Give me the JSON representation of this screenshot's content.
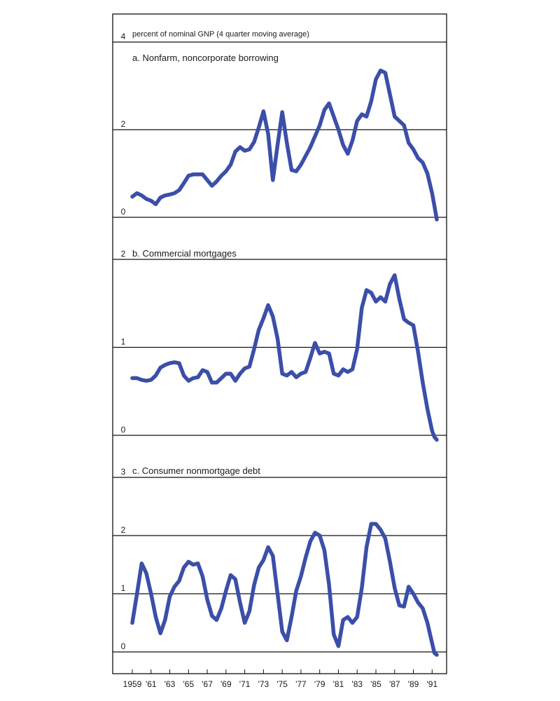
{
  "chart_data": [
    {
      "type": "line",
      "panel": "a",
      "title": "a. Nonfarm, noncorporate borrowing",
      "unit_label": "percent of nominal GNP (4 quarter moving average)",
      "ylim": [
        0,
        4
      ],
      "yticks": [
        0,
        2,
        4
      ],
      "grid": true,
      "x": [
        1959.0,
        1959.5,
        1960.0,
        1960.5,
        1961.0,
        1961.5,
        1962.0,
        1962.5,
        1963.0,
        1963.5,
        1964.0,
        1964.5,
        1965.0,
        1965.5,
        1966.0,
        1966.5,
        1967.0,
        1967.5,
        1968.0,
        1968.5,
        1969.0,
        1969.5,
        1970.0,
        1970.5,
        1971.0,
        1971.5,
        1972.0,
        1972.5,
        1973.0,
        1973.5,
        1974.0,
        1974.5,
        1975.0,
        1975.5,
        1976.0,
        1976.5,
        1977.0,
        1977.5,
        1978.0,
        1978.5,
        1979.0,
        1979.5,
        1980.0,
        1980.5,
        1981.0,
        1981.5,
        1982.0,
        1982.5,
        1983.0,
        1983.5,
        1984.0,
        1984.5,
        1985.0,
        1985.5,
        1986.0,
        1986.5,
        1987.0,
        1987.5,
        1988.0,
        1988.5,
        1989.0,
        1989.5,
        1990.0,
        1990.5,
        1991.0,
        1991.25,
        1991.5
      ],
      "y": [
        0.47,
        0.55,
        0.5,
        0.42,
        0.38,
        0.3,
        0.45,
        0.5,
        0.52,
        0.55,
        0.62,
        0.78,
        0.95,
        0.98,
        0.98,
        0.98,
        0.85,
        0.72,
        0.82,
        0.95,
        1.05,
        1.2,
        1.5,
        1.6,
        1.52,
        1.55,
        1.72,
        2.05,
        2.42,
        1.9,
        0.85,
        1.65,
        2.4,
        1.7,
        1.08,
        1.05,
        1.2,
        1.4,
        1.6,
        1.85,
        2.1,
        2.45,
        2.6,
        2.3,
        2.0,
        1.65,
        1.45,
        1.75,
        2.2,
        2.35,
        2.3,
        2.65,
        3.15,
        3.35,
        3.3,
        2.8,
        2.3,
        2.2,
        2.1,
        1.7,
        1.55,
        1.35,
        1.25,
        1.0,
        0.55,
        0.25,
        -0.05
      ],
      "series_color": "#3b4fa8"
    },
    {
      "type": "line",
      "panel": "b",
      "title": "b. Commercial mortgages",
      "ylim": [
        0,
        2
      ],
      "yticks": [
        0,
        1,
        2
      ],
      "grid": true,
      "x": [
        1959.0,
        1959.5,
        1960.0,
        1960.5,
        1961.0,
        1961.5,
        1962.0,
        1962.5,
        1963.0,
        1963.5,
        1964.0,
        1964.5,
        1965.0,
        1965.5,
        1966.0,
        1966.5,
        1967.0,
        1967.5,
        1968.0,
        1968.5,
        1969.0,
        1969.5,
        1970.0,
        1970.5,
        1971.0,
        1971.5,
        1972.0,
        1972.5,
        1973.0,
        1973.5,
        1974.0,
        1974.5,
        1975.0,
        1975.5,
        1976.0,
        1976.5,
        1977.0,
        1977.5,
        1978.0,
        1978.5,
        1979.0,
        1979.5,
        1980.0,
        1980.5,
        1981.0,
        1981.5,
        1982.0,
        1982.5,
        1983.0,
        1983.5,
        1984.0,
        1984.5,
        1985.0,
        1985.5,
        1986.0,
        1986.5,
        1987.0,
        1987.5,
        1988.0,
        1988.5,
        1989.0,
        1989.5,
        1990.0,
        1990.5,
        1991.0,
        1991.25,
        1991.5
      ],
      "y": [
        0.65,
        0.65,
        0.63,
        0.62,
        0.63,
        0.68,
        0.77,
        0.8,
        0.82,
        0.83,
        0.82,
        0.68,
        0.62,
        0.65,
        0.66,
        0.74,
        0.72,
        0.6,
        0.6,
        0.65,
        0.7,
        0.7,
        0.62,
        0.7,
        0.76,
        0.78,
        0.98,
        1.2,
        1.33,
        1.48,
        1.35,
        1.1,
        0.7,
        0.68,
        0.72,
        0.66,
        0.7,
        0.72,
        0.88,
        1.05,
        0.93,
        0.95,
        0.93,
        0.7,
        0.68,
        0.75,
        0.72,
        0.75,
        0.98,
        1.45,
        1.65,
        1.62,
        1.52,
        1.57,
        1.52,
        1.72,
        1.82,
        1.55,
        1.32,
        1.28,
        1.25,
        0.95,
        0.6,
        0.3,
        0.05,
        -0.02,
        -0.05
      ],
      "series_color": "#3b4fa8"
    },
    {
      "type": "line",
      "panel": "c",
      "title": "c. Consumer nonmortgage debt",
      "ylim": [
        0,
        3
      ],
      "yticks": [
        0,
        1,
        2,
        3
      ],
      "grid": true,
      "xtick_labels": [
        "1959",
        "'61",
        "'63",
        "'65",
        "'67",
        "'69",
        "'71",
        "'73",
        "'75",
        "'77",
        "'79",
        "'81",
        "'83",
        "'85",
        "'87",
        "'89",
        "'91"
      ],
      "xtick_values": [
        1959,
        1961,
        1963,
        1965,
        1967,
        1969,
        1971,
        1973,
        1975,
        1977,
        1979,
        1981,
        1983,
        1985,
        1987,
        1989,
        1991
      ],
      "x": [
        1959.0,
        1959.5,
        1960.0,
        1960.5,
        1961.0,
        1961.5,
        1962.0,
        1962.5,
        1963.0,
        1963.5,
        1964.0,
        1964.5,
        1965.0,
        1965.5,
        1966.0,
        1966.5,
        1967.0,
        1967.5,
        1968.0,
        1968.5,
        1969.0,
        1969.5,
        1970.0,
        1970.5,
        1971.0,
        1971.5,
        1972.0,
        1972.5,
        1973.0,
        1973.5,
        1974.0,
        1974.5,
        1975.0,
        1975.5,
        1976.0,
        1976.5,
        1977.0,
        1977.5,
        1978.0,
        1978.5,
        1979.0,
        1979.5,
        1980.0,
        1980.5,
        1981.0,
        1981.5,
        1982.0,
        1982.5,
        1983.0,
        1983.5,
        1984.0,
        1984.5,
        1985.0,
        1985.5,
        1986.0,
        1986.5,
        1987.0,
        1987.5,
        1988.0,
        1988.5,
        1989.0,
        1989.5,
        1990.0,
        1990.5,
        1991.0,
        1991.25,
        1991.5
      ],
      "y": [
        0.5,
        1.0,
        1.52,
        1.35,
        1.0,
        0.6,
        0.32,
        0.55,
        0.95,
        1.12,
        1.22,
        1.45,
        1.55,
        1.5,
        1.52,
        1.3,
        0.9,
        0.62,
        0.55,
        0.75,
        1.05,
        1.32,
        1.25,
        0.85,
        0.5,
        0.7,
        1.15,
        1.45,
        1.58,
        1.8,
        1.65,
        1.0,
        0.35,
        0.2,
        0.6,
        1.05,
        1.3,
        1.62,
        1.9,
        2.05,
        2.0,
        1.75,
        1.15,
        0.3,
        0.1,
        0.55,
        0.6,
        0.5,
        0.6,
        1.1,
        1.8,
        2.2,
        2.2,
        2.1,
        1.95,
        1.55,
        1.1,
        0.8,
        0.78,
        1.12,
        1.0,
        0.85,
        0.75,
        0.5,
        0.15,
        -0.02,
        -0.05
      ],
      "series_color": "#3b4fa8"
    }
  ]
}
